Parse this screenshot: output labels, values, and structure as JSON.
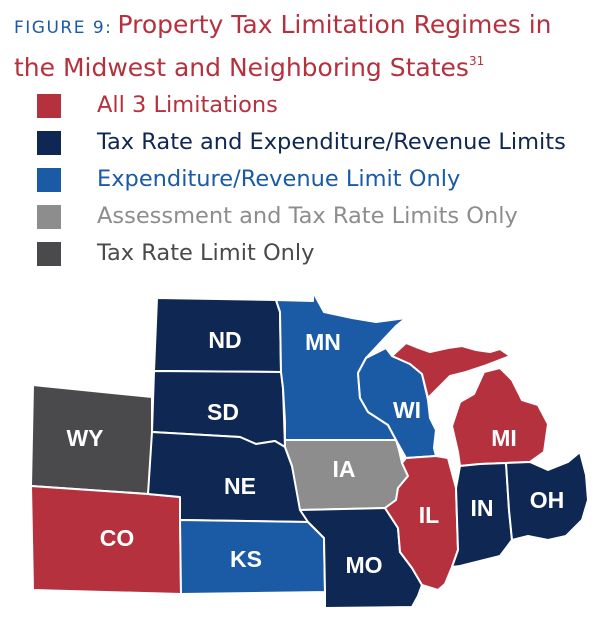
{
  "figure": {
    "label": "FIGURE 9:",
    "title": "Property Tax Limitation Regimes in the Midwest and Neighboring States",
    "footnote": "31"
  },
  "colors": {
    "all_3": "#b6313e",
    "rate_and_exp": "#0f2753",
    "exp_only": "#1b5ba6",
    "assess_and_rate": "#8d8d8d",
    "rate_only": "#4a4a4c"
  },
  "legend": [
    {
      "key": "all_3",
      "label": "All 3 Limitations"
    },
    {
      "key": "rate_and_exp",
      "label": "Tax Rate and Expenditure/Revenue Limits"
    },
    {
      "key": "exp_only",
      "label": "Expenditure/Revenue Limit Only"
    },
    {
      "key": "assess_and_rate",
      "label": "Assessment and Tax Rate Limits Only"
    },
    {
      "key": "rate_only",
      "label": "Tax Rate Limit Only"
    }
  ],
  "states": {
    "ND": {
      "label": "ND",
      "category": "rate_and_exp"
    },
    "SD": {
      "label": "SD",
      "category": "rate_and_exp"
    },
    "NE": {
      "label": "NE",
      "category": "rate_and_exp"
    },
    "KS": {
      "label": "KS",
      "category": "exp_only"
    },
    "MN": {
      "label": "MN",
      "category": "exp_only"
    },
    "IA": {
      "label": "IA",
      "category": "assess_and_rate"
    },
    "MO": {
      "label": "MO",
      "category": "rate_and_exp"
    },
    "WI": {
      "label": "WI",
      "category": "exp_only"
    },
    "IL": {
      "label": "IL",
      "category": "all_3"
    },
    "IN": {
      "label": "IN",
      "category": "rate_and_exp"
    },
    "MI": {
      "label": "MI",
      "category": "all_3"
    },
    "OH": {
      "label": "OH",
      "category": "rate_and_exp"
    },
    "WY": {
      "label": "WY",
      "category": "rate_only"
    },
    "CO": {
      "label": "CO",
      "category": "all_3"
    }
  }
}
